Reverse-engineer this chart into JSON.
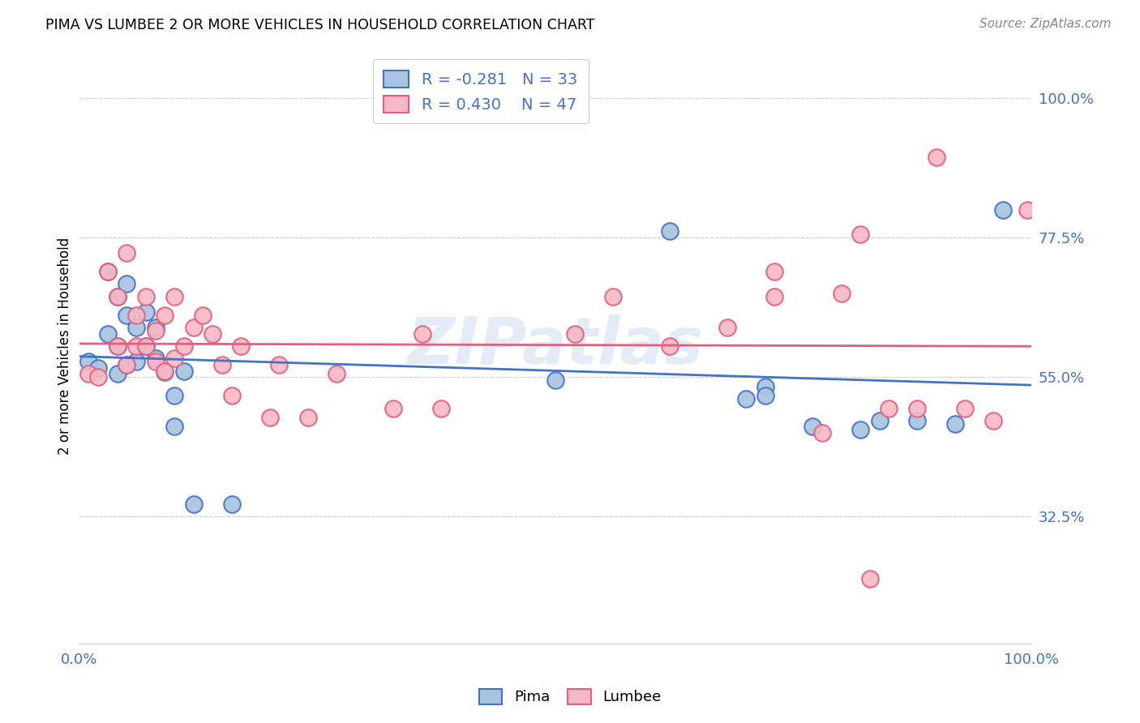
{
  "title": "PIMA VS LUMBEE 2 OR MORE VEHICLES IN HOUSEHOLD CORRELATION CHART",
  "source": "Source: ZipAtlas.com",
  "ylabel": "2 or more Vehicles in Household",
  "ytick_labels": [
    "32.5%",
    "55.0%",
    "77.5%",
    "100.0%"
  ],
  "ytick_values": [
    0.325,
    0.55,
    0.775,
    1.0
  ],
  "xmin": 0.0,
  "xmax": 1.0,
  "ymin": 0.12,
  "ymax": 1.08,
  "pima_color": "#a8c4e0",
  "lumbee_color": "#f5b8c4",
  "pima_line_color": "#4472c4",
  "lumbee_line_color": "#e06080",
  "legend_R_pima": "R = -0.281",
  "legend_N_pima": "N = 33",
  "legend_R_lumbee": "R = 0.430",
  "legend_N_lumbee": "N = 47",
  "watermark": "ZIPatlas",
  "pima_x": [
    0.01,
    0.02,
    0.03,
    0.03,
    0.04,
    0.04,
    0.04,
    0.05,
    0.05,
    0.05,
    0.06,
    0.06,
    0.07,
    0.07,
    0.08,
    0.08,
    0.09,
    0.1,
    0.1,
    0.11,
    0.12,
    0.16,
    0.5,
    0.62,
    0.7,
    0.72,
    0.72,
    0.77,
    0.82,
    0.84,
    0.88,
    0.92,
    0.97
  ],
  "pima_y": [
    0.575,
    0.565,
    0.72,
    0.62,
    0.68,
    0.6,
    0.555,
    0.7,
    0.65,
    0.57,
    0.63,
    0.575,
    0.655,
    0.6,
    0.63,
    0.58,
    0.558,
    0.52,
    0.47,
    0.56,
    0.345,
    0.345,
    0.545,
    0.785,
    0.515,
    0.535,
    0.52,
    0.47,
    0.465,
    0.48,
    0.48,
    0.475,
    0.82
  ],
  "lumbee_x": [
    0.01,
    0.02,
    0.03,
    0.04,
    0.04,
    0.05,
    0.05,
    0.06,
    0.06,
    0.07,
    0.07,
    0.08,
    0.08,
    0.09,
    0.09,
    0.1,
    0.1,
    0.11,
    0.12,
    0.13,
    0.14,
    0.15,
    0.16,
    0.17,
    0.2,
    0.21,
    0.24,
    0.27,
    0.33,
    0.36,
    0.38,
    0.52,
    0.56,
    0.62,
    0.68,
    0.73,
    0.73,
    0.78,
    0.8,
    0.82,
    0.83,
    0.85,
    0.88,
    0.9,
    0.93,
    0.96,
    0.995
  ],
  "lumbee_y": [
    0.555,
    0.55,
    0.72,
    0.68,
    0.6,
    0.75,
    0.57,
    0.65,
    0.6,
    0.68,
    0.6,
    0.625,
    0.575,
    0.65,
    0.56,
    0.68,
    0.58,
    0.6,
    0.63,
    0.65,
    0.62,
    0.57,
    0.52,
    0.6,
    0.485,
    0.57,
    0.485,
    0.555,
    0.5,
    0.62,
    0.5,
    0.62,
    0.68,
    0.6,
    0.63,
    0.72,
    0.68,
    0.46,
    0.685,
    0.78,
    0.225,
    0.5,
    0.5,
    0.905,
    0.5,
    0.48,
    0.82
  ]
}
